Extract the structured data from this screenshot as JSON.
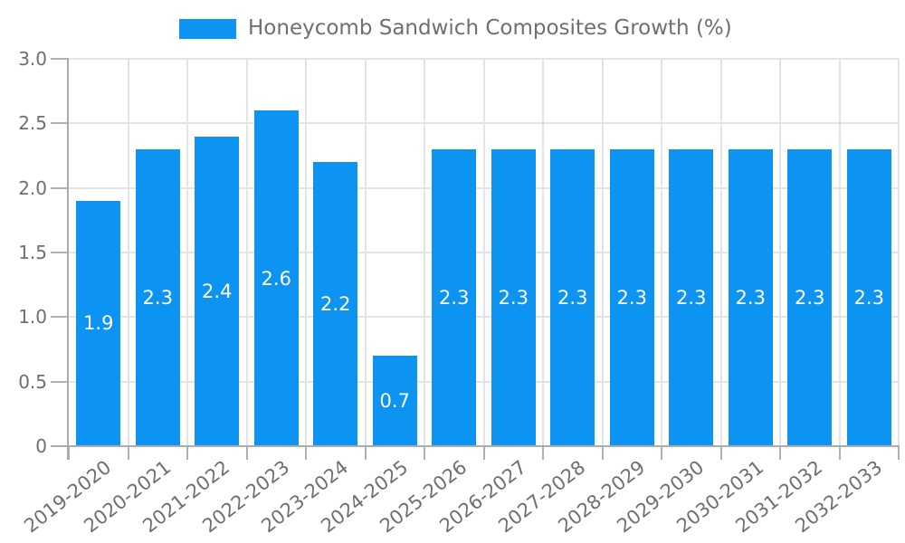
{
  "chart_data": {
    "type": "bar",
    "title": "Honeycomb Sandwich Composites Growth (%)",
    "categories": [
      "2019-2020",
      "2020-2021",
      "2021-2022",
      "2022-2023",
      "2023-2024",
      "2024-2025",
      "2025-2026",
      "2026-2027",
      "2027-2028",
      "2028-2029",
      "2029-2030",
      "2030-2031",
      "2031-2032",
      "2032-2033"
    ],
    "values": [
      1.9,
      2.3,
      2.4,
      2.6,
      2.2,
      0.7,
      2.3,
      2.3,
      2.3,
      2.3,
      2.3,
      2.3,
      2.3,
      2.3
    ],
    "value_labels": [
      "1.9",
      "2.3",
      "2.4",
      "2.6",
      "2.2",
      "0.7",
      "2.3",
      "2.3",
      "2.3",
      "2.3",
      "2.3",
      "2.3",
      "2.3",
      "2.3"
    ],
    "xlabel": "",
    "ylabel": "",
    "ylim": [
      0,
      3.0
    ],
    "ytick_step": 0.5,
    "ytick_labels": [
      "0",
      "0.5",
      "1.0",
      "1.5",
      "2.0",
      "2.5",
      "3.0"
    ],
    "grid": true,
    "legend_position": "top",
    "colors": {
      "bar": "#0D93F2",
      "grid": "#e4e4e4",
      "axis": "#ababab",
      "tick": "#b0b0b0",
      "text": "#6f6f6f",
      "value_label": "#ffffff",
      "background": "#ffffff"
    }
  }
}
